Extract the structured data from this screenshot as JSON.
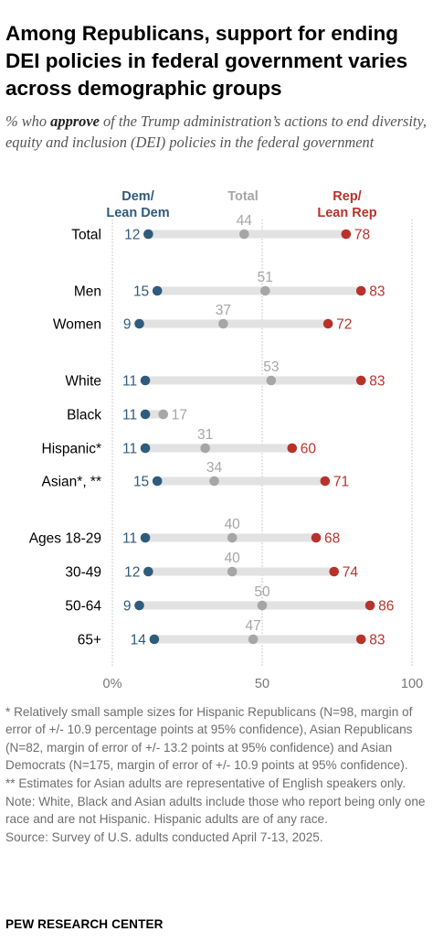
{
  "title": "Among Republicans, support for ending DEI policies in federal government varies across demographic groups",
  "subtitle": {
    "prefix": "% who ",
    "emphasis": "approve",
    "suffix": " of the Trump administration’s actions to end diversity, equity and inclusion (DEI) policies in the federal government"
  },
  "colors": {
    "dem": "#2f5b7c",
    "total": "#a6a6a6",
    "rep": "#b8322b",
    "bar": "#e2e2e2"
  },
  "chart_data": {
    "type": "dot",
    "legend": {
      "dem": [
        "Dem/",
        "Lean Dem"
      ],
      "total": [
        "Total"
      ],
      "rep": [
        "Rep/",
        "Lean Rep"
      ]
    },
    "xlim": [
      0,
      100
    ],
    "xticks": [
      {
        "value": 0,
        "label": "0%"
      },
      {
        "value": 50,
        "label": "50"
      },
      {
        "value": 100,
        "label": "100"
      }
    ],
    "series": [
      {
        "key": "dem",
        "name": "Dem/Lean Dem"
      },
      {
        "key": "total",
        "name": "Total"
      },
      {
        "key": "rep",
        "name": "Rep/Lean Rep"
      }
    ],
    "rows": [
      {
        "label": "Total",
        "dem": 12,
        "total": 44,
        "rep": 78
      },
      {
        "label": "Men",
        "dem": 15,
        "total": 51,
        "rep": 83
      },
      {
        "label": "Women",
        "dem": 9,
        "total": 37,
        "rep": 72
      },
      {
        "label": "White",
        "dem": 11,
        "total": 53,
        "rep": 83
      },
      {
        "label": "Black",
        "dem": 11,
        "total": 17,
        "rep": null
      },
      {
        "label": "Hispanic*",
        "dem": 11,
        "total": 31,
        "rep": 60
      },
      {
        "label": "Asian*, **",
        "dem": 15,
        "total": 34,
        "rep": 71
      },
      {
        "label": "Ages 18-29",
        "dem": 11,
        "total": 40,
        "rep": 68
      },
      {
        "label": "30-49",
        "dem": 12,
        "total": 40,
        "rep": 74
      },
      {
        "label": "50-64",
        "dem": 9,
        "total": 50,
        "rep": 86
      },
      {
        "label": "65+",
        "dem": 14,
        "total": 47,
        "rep": 83
      }
    ]
  },
  "footnotes": {
    "asterisk": "* Relatively small sample sizes for Hispanic Republicans (N=98, margin of error of +/- 10.9 percentage points at 95% confidence), Asian Republicans (N=82, margin of error of +/- 13.2 points at 95% confidence) and Asian Democrats (N=175, margin of error of +/- 10.9 points at 95% confidence).",
    "double_asterisk": "** Estimates for Asian adults are representative of English speakers only.",
    "note": "Note: White, Black and Asian adults include those who report being only one race and are not Hispanic. Hispanic adults are of any race.",
    "source": "Source: Survey of U.S. adults conducted April 7-13, 2025."
  },
  "brand": "PEW RESEARCH CENTER"
}
